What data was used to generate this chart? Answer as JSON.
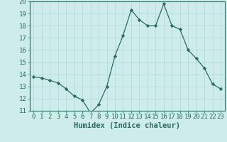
{
  "x": [
    0,
    1,
    2,
    3,
    4,
    5,
    6,
    7,
    8,
    9,
    10,
    11,
    12,
    13,
    14,
    15,
    16,
    17,
    18,
    19,
    20,
    21,
    22,
    23
  ],
  "y": [
    13.8,
    13.7,
    13.5,
    13.3,
    12.8,
    12.2,
    11.9,
    10.8,
    11.5,
    13.0,
    15.5,
    17.2,
    19.3,
    18.5,
    18.0,
    18.0,
    19.8,
    18.0,
    17.7,
    16.0,
    15.3,
    14.5,
    13.2,
    12.8
  ],
  "line_color": "#2a6b5e",
  "marker": "D",
  "marker_size": 2.2,
  "bg_color": "#ceecea",
  "grid_color": "#afd8d5",
  "xlabel": "Humidex (Indice chaleur)",
  "ylim": [
    11,
    20
  ],
  "xlim": [
    -0.5,
    23.5
  ],
  "yticks": [
    11,
    12,
    13,
    14,
    15,
    16,
    17,
    18,
    19,
    20
  ],
  "xticks": [
    0,
    1,
    2,
    3,
    4,
    5,
    6,
    7,
    8,
    9,
    10,
    11,
    12,
    13,
    14,
    15,
    16,
    17,
    18,
    19,
    20,
    21,
    22,
    23
  ],
  "axis_color": "#2a6b5e",
  "tick_label_color": "#2a6b5e",
  "xlabel_fontsize": 7.5,
  "tick_fontsize": 6.5
}
